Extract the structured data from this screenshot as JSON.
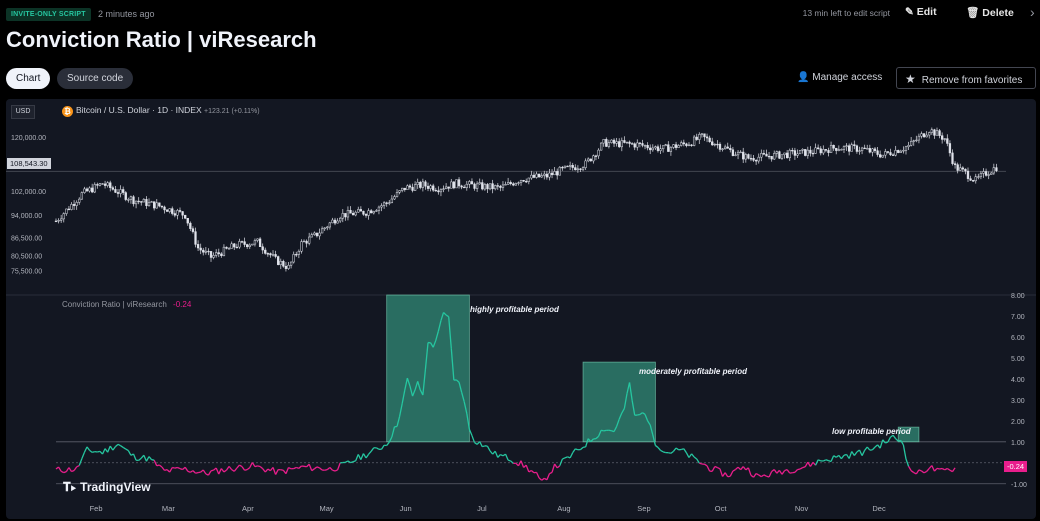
{
  "header": {
    "badge": "INVITE-ONLY SCRIPT",
    "time_ago": "2 minutes ago",
    "edit_note": "13 min left to edit script",
    "edit_label": "Edit",
    "delete_label": "Delete",
    "title": "Conviction Ratio | viResearch"
  },
  "tabs": [
    {
      "label": "Chart",
      "active": true
    },
    {
      "label": "Source code",
      "active": false
    }
  ],
  "actions": {
    "manage_access": "Manage access",
    "remove_favorites": "Remove from favorites"
  },
  "chart_data": [
    {
      "type": "candlestick",
      "symbol_line": "Bitcoin / U.S. Dollar · 1D · INDEX",
      "change": "+123.21 (+0.11%)",
      "currency": "USD",
      "current_price": "108,543.30",
      "yticks": [
        "120,000.00",
        "102,000.00",
        "94,000.00",
        "86,500.00",
        "80,500.00",
        "75,500.00"
      ],
      "price_trend": [
        [
          0,
          92000
        ],
        [
          10,
          101000
        ],
        [
          18,
          104500
        ],
        [
          30,
          99000
        ],
        [
          40,
          97000
        ],
        [
          50,
          94000
        ],
        [
          55,
          83000
        ],
        [
          60,
          80000
        ],
        [
          70,
          84000
        ],
        [
          78,
          85000
        ],
        [
          85,
          79000
        ],
        [
          90,
          76500
        ],
        [
          95,
          84500
        ],
        [
          100,
          87000
        ],
        [
          110,
          94000
        ],
        [
          120,
          95000
        ],
        [
          128,
          98000
        ],
        [
          135,
          103000
        ],
        [
          142,
          104000
        ],
        [
          148,
          103000
        ],
        [
          155,
          104500
        ],
        [
          165,
          103500
        ],
        [
          172,
          103000
        ],
        [
          180,
          106000
        ],
        [
          190,
          107000
        ],
        [
          196,
          109000
        ],
        [
          205,
          111000
        ],
        [
          212,
          118000
        ],
        [
          225,
          117500
        ],
        [
          235,
          116000
        ],
        [
          245,
          118000
        ],
        [
          250,
          120000
        ],
        [
          255,
          118000
        ],
        [
          262,
          115000
        ],
        [
          268,
          113000
        ],
        [
          280,
          114000
        ],
        [
          292,
          115000
        ],
        [
          302,
          116500
        ],
        [
          312,
          116000
        ],
        [
          320,
          114000
        ],
        [
          330,
          117000
        ],
        [
          338,
          122500
        ],
        [
          344,
          119500
        ],
        [
          348,
          110000
        ],
        [
          352,
          108000
        ],
        [
          356,
          105500
        ],
        [
          360,
          108000
        ],
        [
          364,
          110000
        ]
      ],
      "ylim": [
        72000,
        126000
      ]
    },
    {
      "type": "line",
      "title": "Conviction Ratio | viResearch",
      "last_value": "-0.24",
      "yticks": [
        "8.00",
        "7.00",
        "6.00",
        "5.00",
        "4.00",
        "3.00",
        "2.00",
        "1.00",
        "0.00",
        "-1.00"
      ],
      "ylim": [
        -1.25,
        8.0
      ],
      "xticks": [
        "Feb",
        "Mar",
        "Apr",
        "May",
        "Jun",
        "Jul",
        "Aug",
        "Sep",
        "Oct",
        "Nov",
        "Dec"
      ],
      "series": [
        {
          "values": [
            [
              0,
              -0.35
            ],
            [
              8,
              -0.3
            ],
            [
              12,
              0.6
            ],
            [
              18,
              0.5
            ],
            [
              24,
              0.9
            ],
            [
              30,
              0.3
            ],
            [
              36,
              0.2
            ],
            [
              42,
              -0.4
            ],
            [
              50,
              -0.3
            ],
            [
              58,
              -0.5
            ],
            [
              66,
              -0.3
            ],
            [
              76,
              -0.15
            ],
            [
              86,
              -0.45
            ],
            [
              96,
              -0.2
            ],
            [
              106,
              -0.3
            ],
            [
              112,
              -0.1
            ],
            [
              118,
              0.3
            ],
            [
              122,
              0.5
            ],
            [
              128,
              0.9
            ],
            [
              132,
              1.8
            ],
            [
              134,
              2.8
            ],
            [
              136,
              4.0
            ],
            [
              138,
              3.2
            ],
            [
              140,
              3.8
            ],
            [
              142,
              3.2
            ],
            [
              144,
              5.8
            ],
            [
              146,
              5.5
            ],
            [
              148,
              6.3
            ],
            [
              150,
              7.1
            ],
            [
              152,
              6.9
            ],
            [
              154,
              4.0
            ],
            [
              156,
              3.8
            ],
            [
              158,
              3.0
            ],
            [
              160,
              1.6
            ],
            [
              162,
              1.1
            ],
            [
              166,
              0.8
            ],
            [
              170,
              0.4
            ],
            [
              176,
              0.2
            ],
            [
              182,
              -0.2
            ],
            [
              186,
              -0.6
            ],
            [
              188,
              -1.0
            ],
            [
              192,
              -0.3
            ],
            [
              198,
              0.2
            ],
            [
              204,
              0.8
            ],
            [
              208,
              1.2
            ],
            [
              212,
              1.6
            ],
            [
              216,
              1.5
            ],
            [
              220,
              2.6
            ],
            [
              222,
              3.8
            ],
            [
              224,
              2.2
            ],
            [
              228,
              2.4
            ],
            [
              232,
              1.0
            ],
            [
              236,
              0.5
            ],
            [
              242,
              0.6
            ],
            [
              248,
              0.1
            ],
            [
              254,
              -0.3
            ],
            [
              260,
              -0.6
            ],
            [
              266,
              -0.15
            ],
            [
              272,
              -0.7
            ],
            [
              280,
              -0.4
            ],
            [
              288,
              -0.25
            ],
            [
              296,
              0.1
            ],
            [
              304,
              0.3
            ],
            [
              312,
              0.5
            ],
            [
              318,
              0.8
            ],
            [
              324,
              1.2
            ],
            [
              328,
              1.0
            ],
            [
              330,
              -0.3
            ],
            [
              334,
              -0.5
            ],
            [
              338,
              -0.2
            ],
            [
              342,
              -0.45
            ],
            [
              348,
              -0.24
            ]
          ]
        }
      ],
      "annotations": [
        "highly profitable period",
        "moderately profitable period",
        "low profitable period"
      ]
    }
  ],
  "branding": "TradingView",
  "colors": {
    "accent": "#26c6a0",
    "negative": "#e91e8c",
    "badge_bg": "#0c3326"
  }
}
